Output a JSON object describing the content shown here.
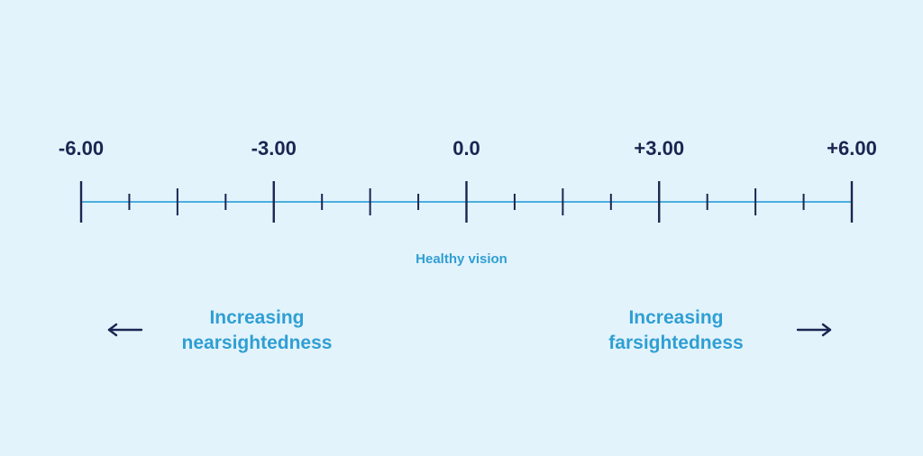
{
  "diagram": {
    "scale": {
      "min": -6,
      "max": 6,
      "major_ticks": [
        -6,
        -3,
        0,
        3,
        6
      ],
      "minor_ticks": [
        -5.25,
        -4.5,
        -3.75,
        -2.25,
        -1.5,
        -0.75,
        0.75,
        1.5,
        2.25,
        3.75,
        4.5,
        5.25
      ],
      "labels": [
        {
          "value": -6,
          "text": "-6.00"
        },
        {
          "value": -3,
          "text": "-3.00"
        },
        {
          "value": 0,
          "text": "0.0"
        },
        {
          "value": 3,
          "text": "+3.00"
        },
        {
          "value": 6,
          "text": "+6.00"
        }
      ]
    },
    "healthy_vision_label": "Healthy vision",
    "nearsighted": {
      "line1": "Increasing",
      "line2": "nearsightedness",
      "arrow_icon": "arrow-left-icon"
    },
    "farsighted": {
      "line1": "Increasing",
      "line2": "farsightedness",
      "arrow_icon": "arrow-right-icon"
    },
    "colors": {
      "background": "#e3f3fc",
      "axis_line": "#4aaede",
      "ticks_and_labels": "#1b2550",
      "caption_text": "#2f9fd3"
    }
  }
}
